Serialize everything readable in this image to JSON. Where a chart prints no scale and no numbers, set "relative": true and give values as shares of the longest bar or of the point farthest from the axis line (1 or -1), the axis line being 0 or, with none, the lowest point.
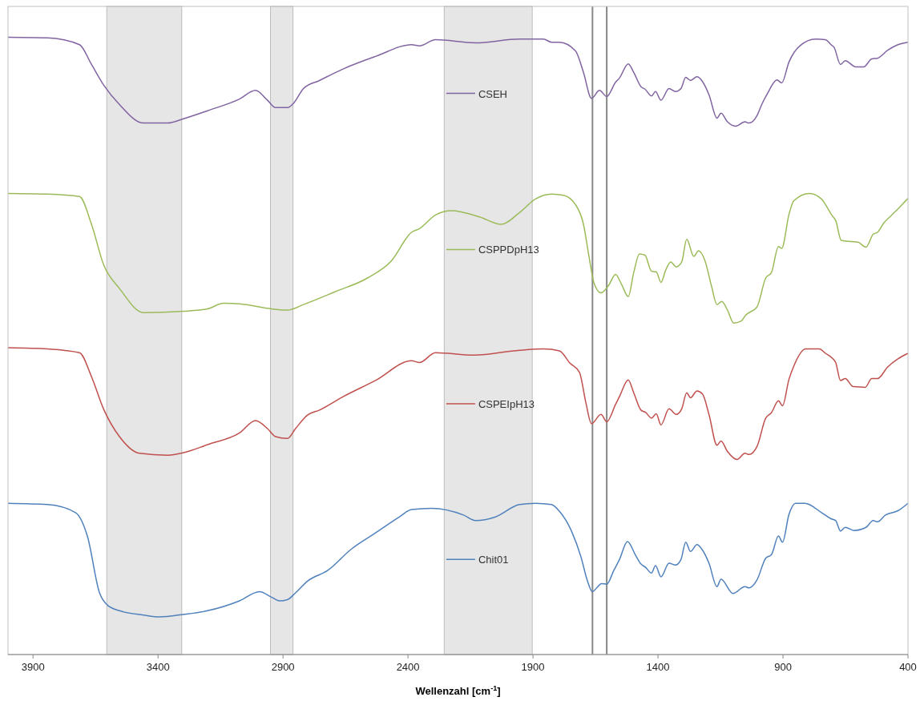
{
  "chart_data": {
    "type": "line",
    "relative": true,
    "xlabel": "Wellenzahl [cm$^{-1}$]",
    "xlim": [
      4000,
      400
    ],
    "xticks": [
      3900,
      3400,
      2900,
      2400,
      1900,
      1400,
      900,
      400
    ],
    "grid": false,
    "legend": "center",
    "marker": "none",
    "line_style": "solid",
    "bands": [
      {
        "axis": "x",
        "from": 3605,
        "to": 3305,
        "color": "#e6e6e6"
      },
      {
        "axis": "x",
        "from": 2950,
        "to": 2860,
        "color": "#e6e6e6"
      },
      {
        "axis": "x",
        "from": 2255,
        "to": 1903,
        "color": "#e6e6e6"
      }
    ],
    "ref_lines": [
      {
        "axis": "x",
        "value": 1662,
        "color": "#888888"
      },
      {
        "axis": "x",
        "value": 1605,
        "color": "#888888"
      }
    ],
    "series": [
      {
        "name": "CSEH",
        "color": "#8064a2",
        "x": [
          4000,
          3842,
          3714,
          3666,
          3618,
          3554,
          3458,
          3362,
          3298,
          3202,
          3074,
          3010,
          2962,
          2930,
          2882,
          2856,
          2818,
          2754,
          2658,
          2530,
          2386,
          2354,
          2290,
          2130,
          1954,
          1858,
          1826,
          1794,
          1730,
          1698,
          1666,
          1634,
          1605,
          1570,
          1554,
          1519,
          1497,
          1468,
          1452,
          1426,
          1410,
          1388,
          1356,
          1330,
          1308,
          1289,
          1270,
          1244,
          1225,
          1196,
          1164,
          1148,
          1122,
          1090,
          1052,
          1036,
          1004,
          985,
          962,
          924,
          905,
          876,
          833,
          769,
          731,
          705,
          696,
          670,
          651,
          609,
          577,
          545,
          522,
          481,
          440,
          400
        ],
        "values": [
          1.0,
          0.999,
          0.988,
          0.956,
          0.923,
          0.891,
          0.861,
          0.861,
          0.868,
          0.881,
          0.9,
          0.914,
          0.898,
          0.886,
          0.886,
          0.894,
          0.917,
          0.93,
          0.949,
          0.969,
          0.988,
          0.986,
          0.996,
          0.991,
          0.997,
          0.997,
          0.992,
          0.992,
          0.978,
          0.943,
          0.901,
          0.914,
          0.904,
          0.927,
          0.934,
          0.957,
          0.943,
          0.92,
          0.916,
          0.905,
          0.912,
          0.898,
          0.917,
          0.912,
          0.917,
          0.935,
          0.93,
          0.936,
          0.93,
          0.907,
          0.869,
          0.877,
          0.863,
          0.856,
          0.863,
          0.861,
          0.873,
          0.891,
          0.909,
          0.931,
          0.926,
          0.96,
          0.986,
          0.997,
          0.996,
          0.987,
          0.984,
          0.956,
          0.962,
          0.952,
          0.952,
          0.965,
          0.966,
          0.979,
          0.988,
          0.992
        ]
      },
      {
        "name": "CSPPDpH13",
        "color": "#9bbb59",
        "x": [
          4000,
          3842,
          3714,
          3666,
          3618,
          3554,
          3458,
          3298,
          3202,
          3138,
          3074,
          2946,
          2882,
          2818,
          2690,
          2562,
          2466,
          2386,
          2354,
          2290,
          2226,
          2114,
          2027,
          1954,
          1890,
          1826,
          1778,
          1730,
          1698,
          1676,
          1656,
          1628,
          1596,
          1570,
          1545,
          1519,
          1497,
          1474,
          1452,
          1426,
          1407,
          1388,
          1369,
          1349,
          1327,
          1305,
          1285,
          1257,
          1238,
          1212,
          1186,
          1164,
          1145,
          1122,
          1097,
          1068,
          1049,
          1004,
          969,
          946,
          918,
          905,
          876,
          857,
          794,
          746,
          730,
          705,
          689,
          667,
          625,
          600,
          568,
          539,
          522,
          497,
          465,
          440,
          400
        ],
        "values": [
          0.747,
          0.746,
          0.742,
          0.697,
          0.632,
          0.593,
          0.554,
          0.556,
          0.56,
          0.569,
          0.568,
          0.56,
          0.558,
          0.567,
          0.588,
          0.61,
          0.638,
          0.684,
          0.69,
          0.712,
          0.719,
          0.709,
          0.697,
          0.716,
          0.738,
          0.746,
          0.744,
          0.729,
          0.697,
          0.645,
          0.602,
          0.586,
          0.599,
          0.616,
          0.599,
          0.58,
          0.619,
          0.649,
          0.647,
          0.621,
          0.62,
          0.603,
          0.623,
          0.636,
          0.628,
          0.636,
          0.673,
          0.645,
          0.654,
          0.638,
          0.597,
          0.567,
          0.572,
          0.558,
          0.537,
          0.54,
          0.55,
          0.563,
          0.61,
          0.619,
          0.661,
          0.658,
          0.713,
          0.735,
          0.747,
          0.738,
          0.729,
          0.712,
          0.703,
          0.671,
          0.669,
          0.668,
          0.66,
          0.681,
          0.684,
          0.699,
          0.712,
          0.722,
          0.739
        ]
      },
      {
        "name": "CSPEIpH13",
        "color": "#c0504d",
        "x": [
          4000,
          3842,
          3714,
          3666,
          3618,
          3554,
          3474,
          3362,
          3298,
          3202,
          3074,
          3010,
          2962,
          2930,
          2882,
          2850,
          2802,
          2754,
          2658,
          2530,
          2386,
          2354,
          2290,
          2136,
          1954,
          1858,
          1794,
          1752,
          1714,
          1688,
          1666,
          1628,
          1605,
          1570,
          1554,
          1519,
          1497,
          1468,
          1449,
          1426,
          1407,
          1388,
          1356,
          1327,
          1305,
          1285,
          1270,
          1244,
          1222,
          1196,
          1164,
          1148,
          1122,
          1084,
          1052,
          1036,
          1004,
          969,
          946,
          918,
          902,
          876,
          857,
          809,
          755,
          730,
          705,
          689,
          670,
          651,
          619,
          571,
          545,
          522,
          481,
          440,
          400
        ],
        "values": [
          0.497,
          0.495,
          0.489,
          0.45,
          0.398,
          0.353,
          0.326,
          0.323,
          0.327,
          0.34,
          0.359,
          0.379,
          0.366,
          0.353,
          0.35,
          0.366,
          0.388,
          0.396,
          0.418,
          0.444,
          0.476,
          0.473,
          0.489,
          0.485,
          0.493,
          0.495,
          0.492,
          0.472,
          0.457,
          0.407,
          0.374,
          0.389,
          0.377,
          0.405,
          0.418,
          0.445,
          0.424,
          0.396,
          0.392,
          0.383,
          0.39,
          0.372,
          0.398,
          0.389,
          0.398,
          0.424,
          0.416,
          0.427,
          0.422,
          0.389,
          0.339,
          0.346,
          0.329,
          0.316,
          0.326,
          0.324,
          0.337,
          0.383,
          0.392,
          0.411,
          0.403,
          0.446,
          0.467,
          0.495,
          0.495,
          0.488,
          0.481,
          0.473,
          0.444,
          0.447,
          0.434,
          0.433,
          0.447,
          0.447,
          0.466,
          0.479,
          0.488
        ]
      },
      {
        "name": "Chit01",
        "color": "#4f81bd",
        "x": [
          4000,
          3842,
          3730,
          3682,
          3634,
          3602,
          3554,
          3458,
          3394,
          3298,
          3202,
          3074,
          2994,
          2946,
          2914,
          2882,
          2850,
          2802,
          2722,
          2626,
          2530,
          2434,
          2386,
          2306,
          2178,
          2130,
          2050,
          1954,
          1890,
          1826,
          1794,
          1746,
          1708,
          1682,
          1663,
          1625,
          1605,
          1577,
          1554,
          1522,
          1490,
          1471,
          1449,
          1426,
          1410,
          1388,
          1356,
          1330,
          1308,
          1289,
          1270,
          1244,
          1225,
          1196,
          1164,
          1148,
          1100,
          1052,
          1036,
          1004,
          969,
          946,
          918,
          902,
          876,
          850,
          812,
          746,
          708,
          689,
          670,
          651,
          616,
          568,
          539,
          522,
          490,
          440,
          400
        ],
        "values": [
          0.245,
          0.243,
          0.23,
          0.191,
          0.1,
          0.08,
          0.071,
          0.064,
          0.061,
          0.065,
          0.071,
          0.087,
          0.102,
          0.093,
          0.087,
          0.089,
          0.1,
          0.119,
          0.136,
          0.171,
          0.197,
          0.223,
          0.235,
          0.237,
          0.226,
          0.217,
          0.223,
          0.243,
          0.245,
          0.243,
          0.232,
          0.2,
          0.158,
          0.119,
          0.102,
          0.115,
          0.114,
          0.136,
          0.154,
          0.183,
          0.161,
          0.148,
          0.141,
          0.132,
          0.144,
          0.126,
          0.148,
          0.145,
          0.154,
          0.182,
          0.167,
          0.178,
          0.171,
          0.148,
          0.11,
          0.122,
          0.099,
          0.11,
          0.108,
          0.121,
          0.156,
          0.162,
          0.192,
          0.182,
          0.227,
          0.245,
          0.245,
          0.23,
          0.22,
          0.217,
          0.2,
          0.206,
          0.201,
          0.206,
          0.217,
          0.215,
          0.226,
          0.233,
          0.245
        ]
      }
    ]
  }
}
